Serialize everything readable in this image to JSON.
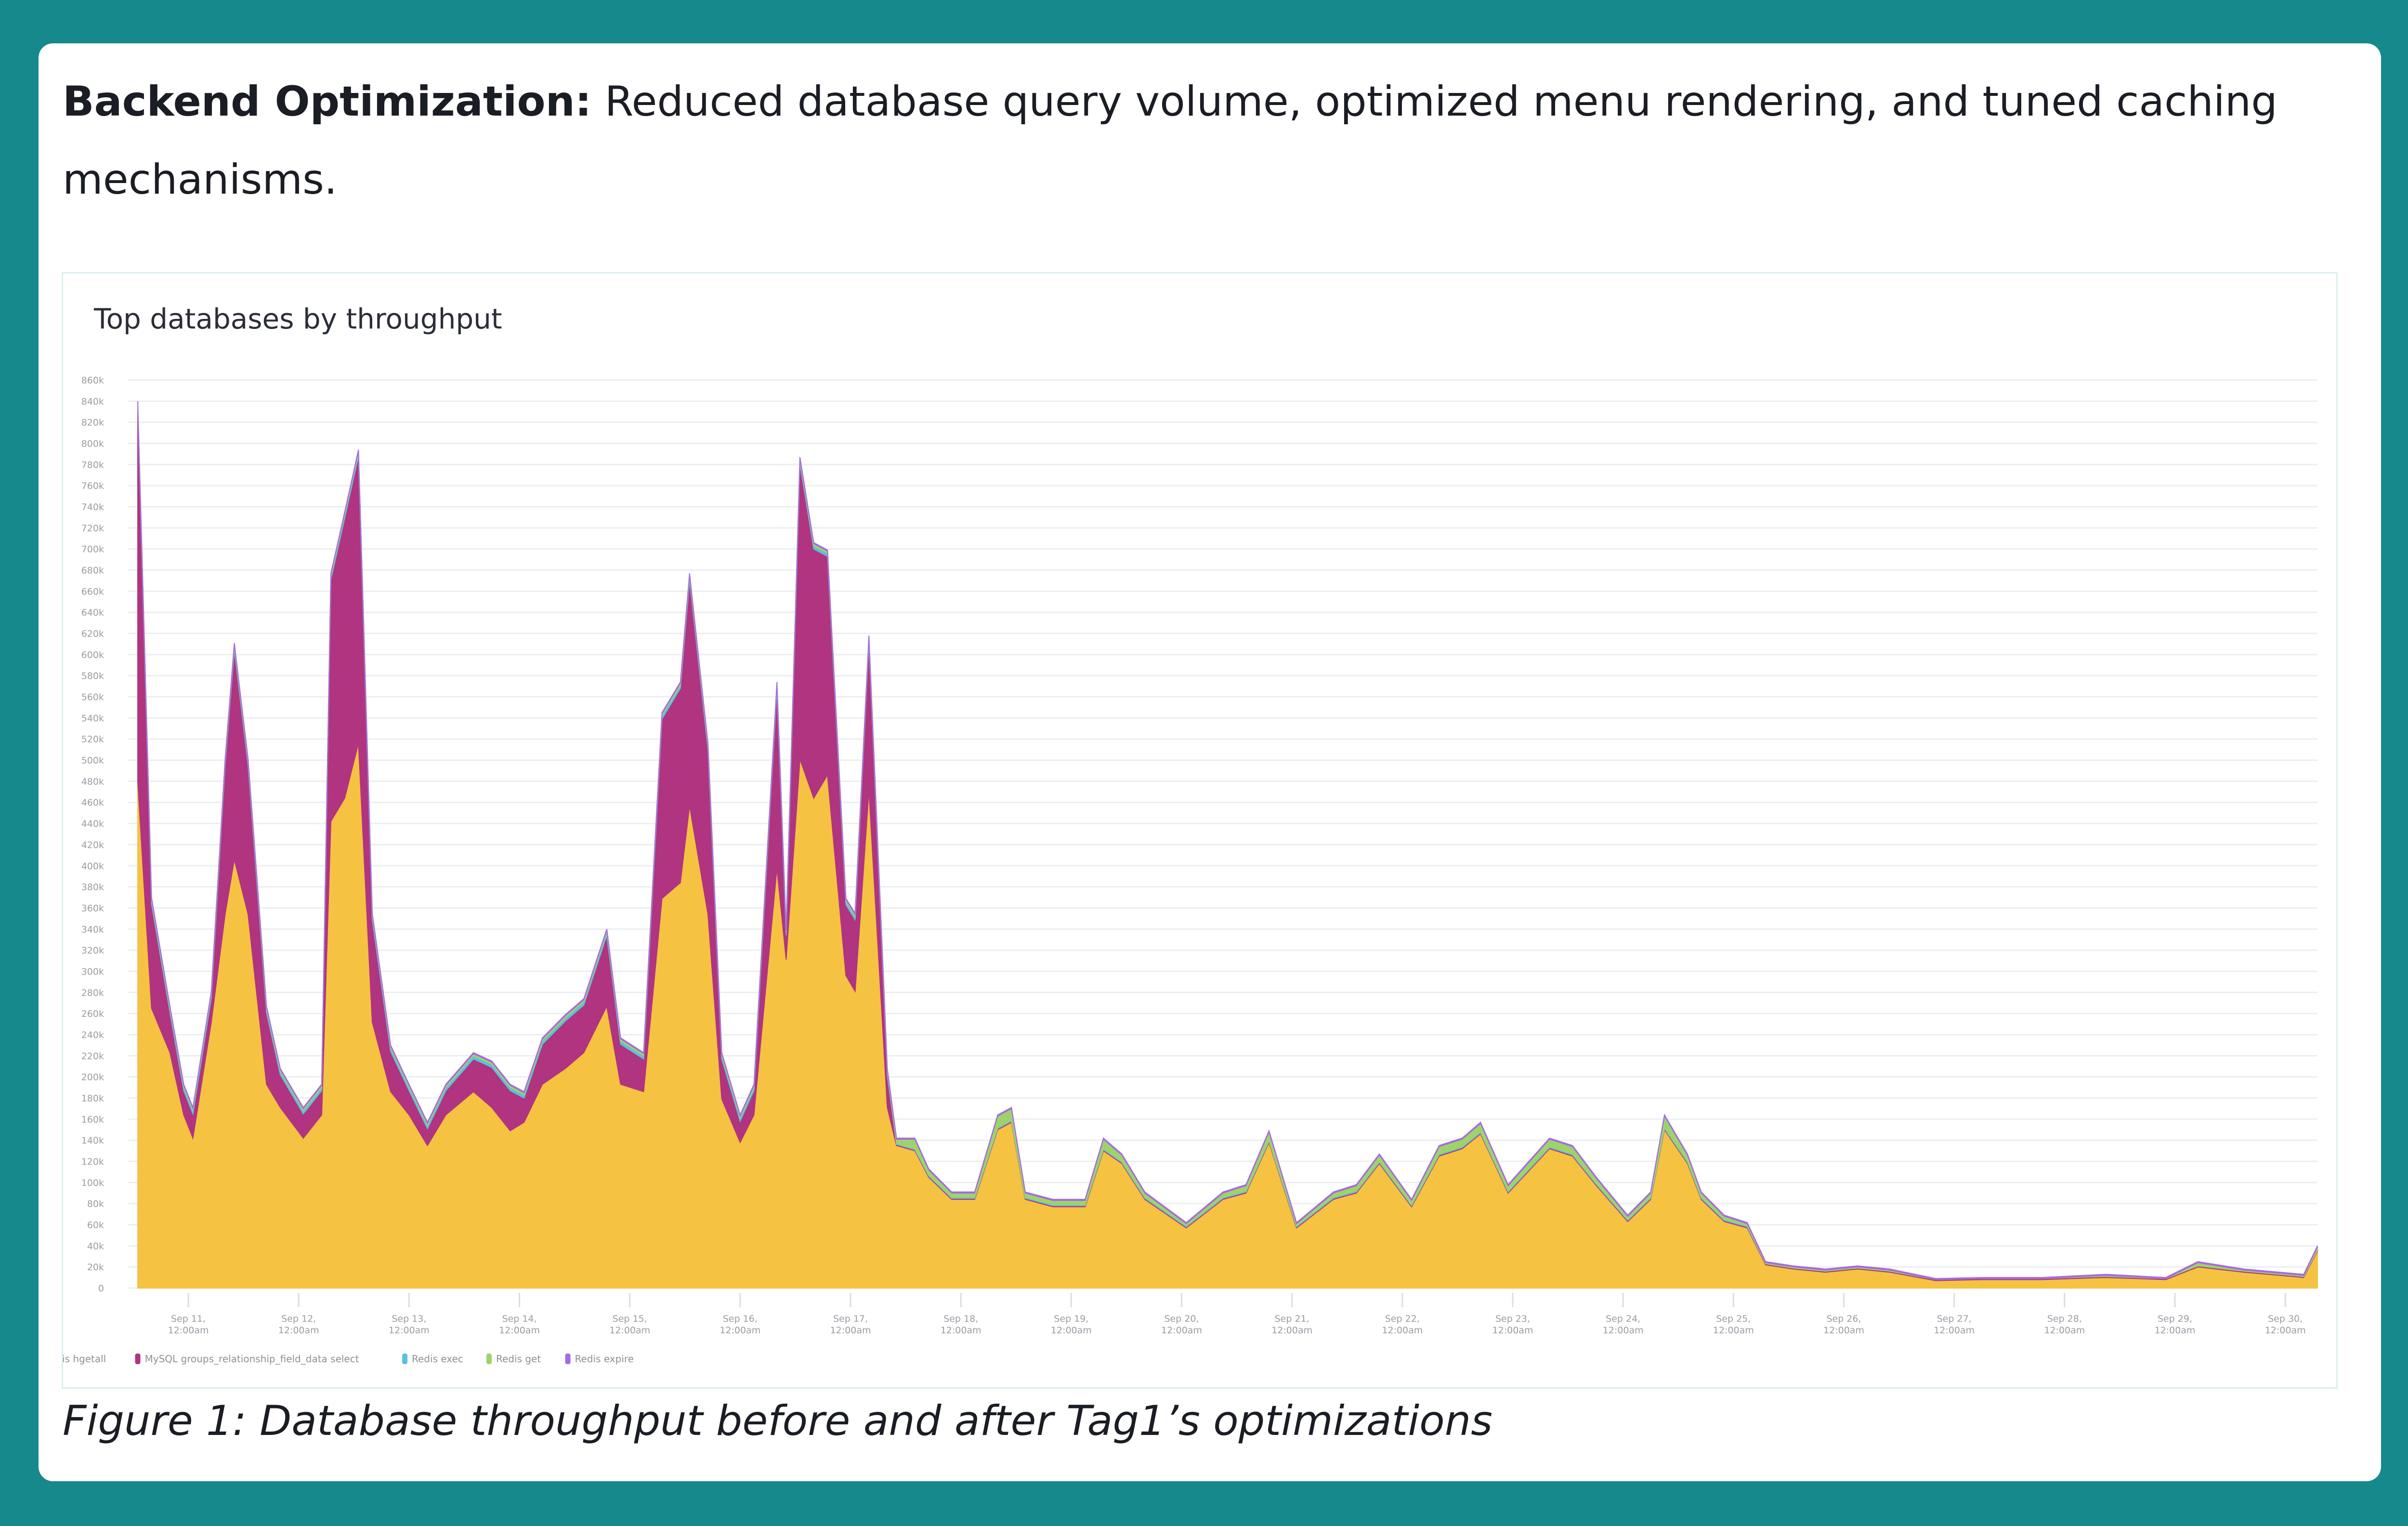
{
  "colors": {
    "background": "#15898c",
    "card": "#ffffff"
  },
  "heading": {
    "bold": "Backend Optimization:",
    "text": " Reduced database query volume, optimized menu rendering, and tuned caching mechanisms."
  },
  "caption": "Figure 1: Database throughput before and after Tag1’s optimizations",
  "chart_data": {
    "type": "area",
    "stacked": true,
    "title": "Top databases by throughput",
    "xlabel": "",
    "ylabel": "",
    "ylim": [
      0,
      860
    ],
    "y_unit": "k",
    "y_ticks_step": 20,
    "grid": true,
    "legend_placement": "bottom-left",
    "x_range": [
      "Sep 10 13:00",
      "Sep 30 07:00"
    ],
    "x_ticks": [
      {
        "at": "Sep 11 00:00",
        "line1": "Sep 11,",
        "line2": "12:00am"
      },
      {
        "at": "Sep 12 00:00",
        "line1": "Sep 12,",
        "line2": "12:00am"
      },
      {
        "at": "Sep 13 00:00",
        "line1": "Sep 13,",
        "line2": "12:00am"
      },
      {
        "at": "Sep 14 00:00",
        "line1": "Sep 14,",
        "line2": "12:00am"
      },
      {
        "at": "Sep 15 00:00",
        "line1": "Sep 15,",
        "line2": "12:00am"
      },
      {
        "at": "Sep 16 00:00",
        "line1": "Sep 16,",
        "line2": "12:00am"
      },
      {
        "at": "Sep 17 00:00",
        "line1": "Sep 17,",
        "line2": "12:00am"
      },
      {
        "at": "Sep 18 00:00",
        "line1": "Sep 18,",
        "line2": "12:00am"
      },
      {
        "at": "Sep 19 00:00",
        "line1": "Sep 19,",
        "line2": "12:00am"
      },
      {
        "at": "Sep 20 00:00",
        "line1": "Sep 20,",
        "line2": "12:00am"
      },
      {
        "at": "Sep 21 00:00",
        "line1": "Sep 21,",
        "line2": "12:00am"
      },
      {
        "at": "Sep 22 00:00",
        "line1": "Sep 22,",
        "line2": "12:00am"
      },
      {
        "at": "Sep 23 00:00",
        "line1": "Sep 23,",
        "line2": "12:00am"
      },
      {
        "at": "Sep 24 00:00",
        "line1": "Sep 24,",
        "line2": "12:00am"
      },
      {
        "at": "Sep 25 00:00",
        "line1": "Sep 25,",
        "line2": "12:00am"
      },
      {
        "at": "Sep 26 00:00",
        "line1": "Sep 26,",
        "line2": "12:00am"
      },
      {
        "at": "Sep 27 00:00",
        "line1": "Sep 27,",
        "line2": "12:00am"
      },
      {
        "at": "Sep 28 00:00",
        "line1": "Sep 28,",
        "line2": "12:00am"
      },
      {
        "at": "Sep 29 00:00",
        "line1": "Sep 29,",
        "line2": "12:00am"
      },
      {
        "at": "Sep 30 00:00",
        "line1": "Sep 30,",
        "line2": "12:00am"
      }
    ],
    "x": [
      "Sep 10 13:00",
      "Sep 10 16:00",
      "Sep 10 20:00",
      "Sep 10 23:00",
      "Sep 11 01:00",
      "Sep 11 05:00",
      "Sep 11 08:00",
      "Sep 11 10:00",
      "Sep 11 13:00",
      "Sep 11 17:00",
      "Sep 11 20:00",
      "Sep 12 01:00",
      "Sep 12 05:00",
      "Sep 12 07:00",
      "Sep 12 10:00",
      "Sep 12 13:00",
      "Sep 12 16:00",
      "Sep 12 20:00",
      "Sep 13 00:00",
      "Sep 13 04:00",
      "Sep 13 08:00",
      "Sep 13 14:00",
      "Sep 13 18:00",
      "Sep 13 22:00",
      "Sep 14 01:00",
      "Sep 14 05:00",
      "Sep 14 10:00",
      "Sep 14 14:00",
      "Sep 14 19:00",
      "Sep 14 22:00",
      "Sep 15 03:00",
      "Sep 15 07:00",
      "Sep 15 11:00",
      "Sep 15 13:00",
      "Sep 15 17:00",
      "Sep 15 20:00",
      "Sep 16 00:00",
      "Sep 16 03:00",
      "Sep 16 08:00",
      "Sep 16 10:00",
      "Sep 16 13:00",
      "Sep 16 16:00",
      "Sep 16 19:00",
      "Sep 16 23:00",
      "Sep 17 01:00",
      "Sep 17 04:00",
      "Sep 17 08:00",
      "Sep 17 10:00",
      "Sep 17 14:00",
      "Sep 17 17:00",
      "Sep 17 22:00",
      "Sep 18 03:00",
      "Sep 18 08:00",
      "Sep 18 11:00",
      "Sep 18 14:00",
      "Sep 18 20:00",
      "Sep 19 03:00",
      "Sep 19 07:00",
      "Sep 19 11:00",
      "Sep 19 16:00",
      "Sep 20 01:00",
      "Sep 20 09:00",
      "Sep 20 14:00",
      "Sep 20 19:00",
      "Sep 21 01:00",
      "Sep 21 09:00",
      "Sep 21 14:00",
      "Sep 21 19:00",
      "Sep 22 02:00",
      "Sep 22 08:00",
      "Sep 22 13:00",
      "Sep 22 17:00",
      "Sep 22 23:00",
      "Sep 23 08:00",
      "Sep 23 13:00",
      "Sep 23 18:00",
      "Sep 24 01:00",
      "Sep 24 06:00",
      "Sep 24 09:00",
      "Sep 24 14:00",
      "Sep 24 17:00",
      "Sep 24 22:00",
      "Sep 25 03:00",
      "Sep 25 07:00",
      "Sep 25 13:00",
      "Sep 25 20:00",
      "Sep 26 03:00",
      "Sep 26 10:00",
      "Sep 26 20:00",
      "Sep 27 06:00",
      "Sep 27 19:00",
      "Sep 28 09:00",
      "Sep 28 22:00",
      "Sep 29 05:00",
      "Sep 29 15:00",
      "Sep 30 04:00",
      "Sep 30 07:00"
    ],
    "series": [
      {
        "name": "Redis hgetall",
        "color": "#f5c242",
        "values": [
          480,
          265,
          223,
          164,
          142,
          252,
          354,
          406,
          354,
          193,
          171,
          142,
          164,
          442,
          464,
          516,
          252,
          186,
          164,
          135,
          164,
          186,
          171,
          149,
          157,
          193,
          208,
          223,
          267,
          193,
          186,
          369,
          384,
          457,
          354,
          179,
          138,
          164,
          398,
          311,
          501,
          464,
          486,
          296,
          281,
          472,
          171,
          135,
          130,
          105,
          84,
          84,
          150,
          157,
          84,
          77,
          77,
          130,
          118,
          84,
          57,
          84,
          90,
          138,
          57,
          84,
          90,
          118,
          77,
          125,
          132,
          146,
          90,
          132,
          125,
          98,
          63,
          84,
          150,
          118,
          84,
          63,
          57,
          22,
          18,
          15,
          18,
          15,
          7,
          8,
          8,
          10,
          8,
          20,
          15,
          10,
          35
        ]
      },
      {
        "name": "MySQL groups_relationship_field_data select",
        "color": "#b0347f",
        "values": [
          354,
          99,
          38,
          23,
          23,
          23,
          141,
          199,
          141,
          68,
          31,
          23,
          23,
          229,
          265,
          272,
          97,
          38,
          23,
          16,
          23,
          31,
          38,
          38,
          23,
          38,
          45,
          45,
          67,
          38,
          31,
          170,
          184,
          214,
          156,
          38,
          20,
          23,
          170,
          23,
          280,
          236,
          207,
          67,
          68,
          140,
          31,
          1,
          1,
          1,
          1,
          1,
          1,
          1,
          1,
          1,
          1,
          1,
          1,
          1,
          1,
          1,
          1,
          1,
          1,
          1,
          1,
          1,
          1,
          1,
          1,
          1,
          1,
          1,
          1,
          1,
          1,
          1,
          1,
          1,
          1,
          1,
          1,
          1,
          1,
          1,
          1,
          1,
          1,
          1,
          1,
          1,
          1,
          1,
          1,
          1,
          1
        ]
      },
      {
        "name": "Redis exec",
        "color": "#5bc0de",
        "values": [
          3,
          3,
          3,
          3,
          3,
          3,
          3,
          3,
          3,
          3,
          3,
          3,
          3,
          3,
          3,
          3,
          3,
          3,
          3,
          3,
          3,
          3,
          3,
          3,
          3,
          3,
          3,
          3,
          3,
          3,
          3,
          3,
          3,
          3,
          3,
          3,
          3,
          3,
          3,
          3,
          3,
          3,
          3,
          3,
          3,
          3,
          3,
          1,
          1,
          1,
          1,
          1,
          1,
          1,
          1,
          1,
          1,
          1,
          1,
          1,
          1,
          1,
          1,
          1,
          1,
          1,
          1,
          1,
          1,
          1,
          1,
          1,
          1,
          1,
          1,
          1,
          1,
          1,
          1,
          1,
          1,
          1,
          1,
          0,
          0,
          0,
          0,
          0,
          0,
          0,
          0,
          0,
          0,
          0,
          0,
          0,
          0
        ]
      },
      {
        "name": "Redis get",
        "color": "#9ed36a",
        "values": [
          2,
          2,
          2,
          2,
          2,
          2,
          2,
          2,
          2,
          2,
          2,
          2,
          2,
          2,
          2,
          2,
          2,
          2,
          2,
          2,
          2,
          2,
          2,
          2,
          2,
          2,
          2,
          2,
          2,
          2,
          2,
          2,
          2,
          2,
          2,
          2,
          2,
          2,
          2,
          2,
          2,
          2,
          2,
          2,
          2,
          2,
          2,
          4,
          9,
          5,
          4,
          4,
          11,
          11,
          4,
          4,
          4,
          9,
          6,
          4,
          2,
          4,
          5,
          8,
          2,
          4,
          5,
          6,
          4,
          7,
          7,
          8,
          5,
          7,
          7,
          5,
          3,
          4,
          11,
          6,
          4,
          3,
          2,
          1,
          1,
          1,
          1,
          1,
          0,
          0,
          0,
          1,
          0,
          3,
          1,
          1,
          3
        ]
      },
      {
        "name": "Redis expire",
        "color": "#a56be0",
        "values": [
          1,
          1,
          1,
          1,
          1,
          1,
          1,
          1,
          1,
          1,
          1,
          1,
          1,
          1,
          1,
          1,
          1,
          1,
          1,
          1,
          1,
          1,
          1,
          1,
          1,
          1,
          1,
          1,
          1,
          1,
          1,
          1,
          1,
          1,
          1,
          1,
          1,
          1,
          1,
          1,
          1,
          1,
          1,
          1,
          1,
          1,
          1,
          1,
          1,
          1,
          1,
          1,
          1,
          1,
          1,
          1,
          1,
          1,
          1,
          1,
          1,
          1,
          1,
          1,
          1,
          1,
          1,
          1,
          1,
          1,
          1,
          1,
          1,
          1,
          1,
          1,
          1,
          1,
          1,
          1,
          1,
          1,
          1,
          1,
          1,
          1,
          1,
          1,
          1,
          1,
          1,
          1,
          1,
          1,
          1,
          1,
          1
        ]
      }
    ]
  }
}
